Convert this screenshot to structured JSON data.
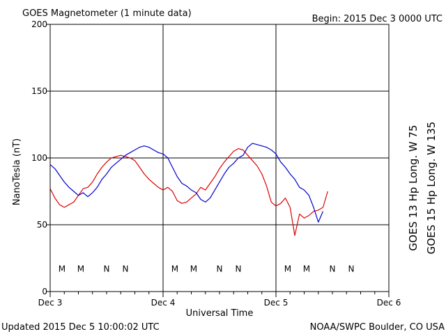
{
  "header": {
    "title": "GOES Magnetometer (1 minute data)",
    "begin": "Begin:  2015 Dec 3 0000 UTC"
  },
  "footer": {
    "updated": "Updated 2015 Dec  5 10:00:02 UTC",
    "credit": "NOAA/SWPC Boulder, CO USA"
  },
  "colors": {
    "goes13": "#dd0000",
    "goes15": "#0000cc",
    "grid": "#000000"
  },
  "chart_data": {
    "type": "line",
    "title": "GOES Magnetometer (1 minute data)",
    "xlabel": "Universal Time",
    "ylabel": "NanoTesla (nT)",
    "xlim": [
      0,
      72
    ],
    "ylim": [
      0,
      200
    ],
    "x_unit": "hours since 2015 Dec 3 0000 UTC",
    "x_ticks": [
      {
        "x": 0,
        "label": "Dec 3"
      },
      {
        "x": 24,
        "label": "Dec 4"
      },
      {
        "x": 48,
        "label": "Dec 5"
      },
      {
        "x": 72,
        "label": "Dec 6"
      }
    ],
    "y_ticks": [
      0,
      50,
      100,
      150,
      200
    ],
    "grid": true,
    "series": [
      {
        "name": "GOES 13 Hp  Long. W 75",
        "color": "#dd0000",
        "x": [
          0,
          1,
          2,
          3,
          4,
          5,
          6,
          7,
          8,
          9,
          10,
          11,
          12,
          13,
          14,
          15,
          16,
          17,
          18,
          19,
          20,
          21,
          22,
          23,
          24,
          25,
          26,
          27,
          28,
          29,
          30,
          31,
          32,
          33,
          34,
          35,
          36,
          37,
          38,
          39,
          40,
          41,
          42,
          43,
          44,
          45,
          46,
          47,
          48,
          49,
          50,
          51,
          52,
          53,
          54,
          55,
          56,
          57,
          58,
          59
        ],
        "values": [
          77,
          70,
          65,
          63,
          65,
          67,
          72,
          77,
          78,
          82,
          88,
          93,
          97,
          100,
          101,
          102,
          101,
          100,
          98,
          93,
          88,
          84,
          81,
          78,
          76,
          78,
          75,
          68,
          66,
          67,
          70,
          73,
          78,
          76,
          81,
          86,
          92,
          97,
          101,
          105,
          107,
          106,
          102,
          98,
          94,
          88,
          79,
          67,
          64,
          66,
          70,
          63,
          42,
          58,
          55,
          57,
          60,
          61,
          63,
          75
        ]
      },
      {
        "name": "GOES 15 Hp  Long. W 135",
        "color": "#0000cc",
        "x": [
          0,
          1,
          2,
          3,
          4,
          5,
          6,
          7,
          8,
          9,
          10,
          11,
          12,
          13,
          14,
          15,
          16,
          17,
          18,
          19,
          20,
          21,
          22,
          23,
          24,
          25,
          26,
          27,
          28,
          29,
          30,
          31,
          32,
          33,
          34,
          35,
          36,
          37,
          38,
          39,
          40,
          41,
          42,
          43,
          44,
          45,
          46,
          47,
          48,
          49,
          50,
          51,
          52,
          53,
          54,
          55,
          56,
          57,
          58
        ],
        "values": [
          95,
          92,
          87,
          82,
          78,
          75,
          72,
          74,
          71,
          74,
          78,
          84,
          88,
          93,
          96,
          99,
          102,
          104,
          106,
          108,
          109,
          108,
          106,
          104,
          103,
          100,
          93,
          86,
          81,
          79,
          76,
          74,
          69,
          67,
          70,
          76,
          82,
          88,
          93,
          96,
          100,
          102,
          108,
          111,
          110,
          109,
          108,
          106,
          103,
          97,
          93,
          88,
          84,
          78,
          76,
          72,
          63,
          52,
          60
        ]
      }
    ],
    "annotations": {
      "marker_y": 17,
      "goes13_markers": [
        {
          "x": 2.5,
          "label": "M"
        },
        {
          "x": 12,
          "label": "N"
        },
        {
          "x": 26.5,
          "label": "M"
        },
        {
          "x": 36,
          "label": "N"
        },
        {
          "x": 50.5,
          "label": "M"
        },
        {
          "x": 60,
          "label": "N"
        }
      ],
      "goes15_markers": [
        {
          "x": 6.5,
          "label": "M"
        },
        {
          "x": 16,
          "label": "N"
        },
        {
          "x": 30.5,
          "label": "M"
        },
        {
          "x": 40,
          "label": "N"
        },
        {
          "x": 54.5,
          "label": "M"
        },
        {
          "x": 64,
          "label": "N"
        }
      ]
    }
  }
}
